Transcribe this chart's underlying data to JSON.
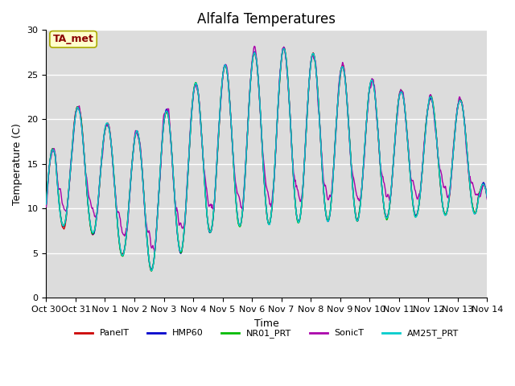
{
  "title": "Alfalfa Temperatures",
  "xlabel": "Time",
  "ylabel": "Temperature (C)",
  "ylim": [
    0,
    30
  ],
  "yticks": [
    0,
    5,
    10,
    15,
    20,
    25,
    30
  ],
  "background_color": "#dcdcdc",
  "legend_label": "TA_met",
  "legend_label_color": "#8b0000",
  "legend_box_color": "#ffffcc",
  "series": [
    {
      "name": "PanelT",
      "color": "#cc0000",
      "lw": 1.0
    },
    {
      "name": "HMP60",
      "color": "#0000cc",
      "lw": 1.0
    },
    {
      "name": "NR01_PRT",
      "color": "#00bb00",
      "lw": 1.0
    },
    {
      "name": "SonicT",
      "color": "#aa00aa",
      "lw": 1.0
    },
    {
      "name": "AM25T_PRT",
      "color": "#00cccc",
      "lw": 1.0
    }
  ],
  "xtick_labels": [
    "Oct 30",
    "Oct 31",
    "Nov 1",
    "Nov 2",
    "Nov 3",
    "Nov 4",
    "Nov 5",
    "Nov 6",
    "Nov 7",
    "Nov 8",
    "Nov 9",
    "Nov 10",
    "Nov 11",
    "Nov 12",
    "Nov 13",
    "Nov 14"
  ],
  "title_fontsize": 12,
  "axis_label_fontsize": 9,
  "tick_fontsize": 8,
  "figsize": [
    6.4,
    4.8
  ],
  "dpi": 100
}
